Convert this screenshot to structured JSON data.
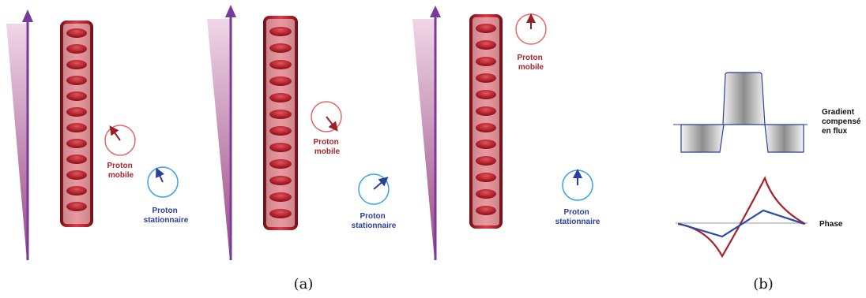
{
  "panel_a": {
    "caption": "(a)",
    "frames": [
      {
        "mobile_label": [
          "Proton",
          "mobile"
        ],
        "stationary_label": [
          "Proton",
          "stationnaire"
        ]
      },
      {
        "mobile_label": [
          "Proton",
          "mobile"
        ],
        "stationary_label": [
          "Proton",
          "stationnaire"
        ]
      },
      {
        "mobile_label": [
          "Proton",
          "mobile"
        ],
        "stationary_label": [
          "Proton",
          "stationnaire"
        ]
      }
    ]
  },
  "panel_b": {
    "caption": "(b)",
    "gradient_label": [
      "Gradient",
      "compensé",
      "en flux"
    ],
    "phase_label": "Phase"
  },
  "colors": {
    "vessel": "#a8202a",
    "arrow": "#7a3a9a",
    "mobile": "#c23a3a",
    "stationary": "#2b3f9c",
    "gradient_outline": "#2b3f9c",
    "phase_red": "#a8202a",
    "phase_blue": "#2b4ba8"
  }
}
